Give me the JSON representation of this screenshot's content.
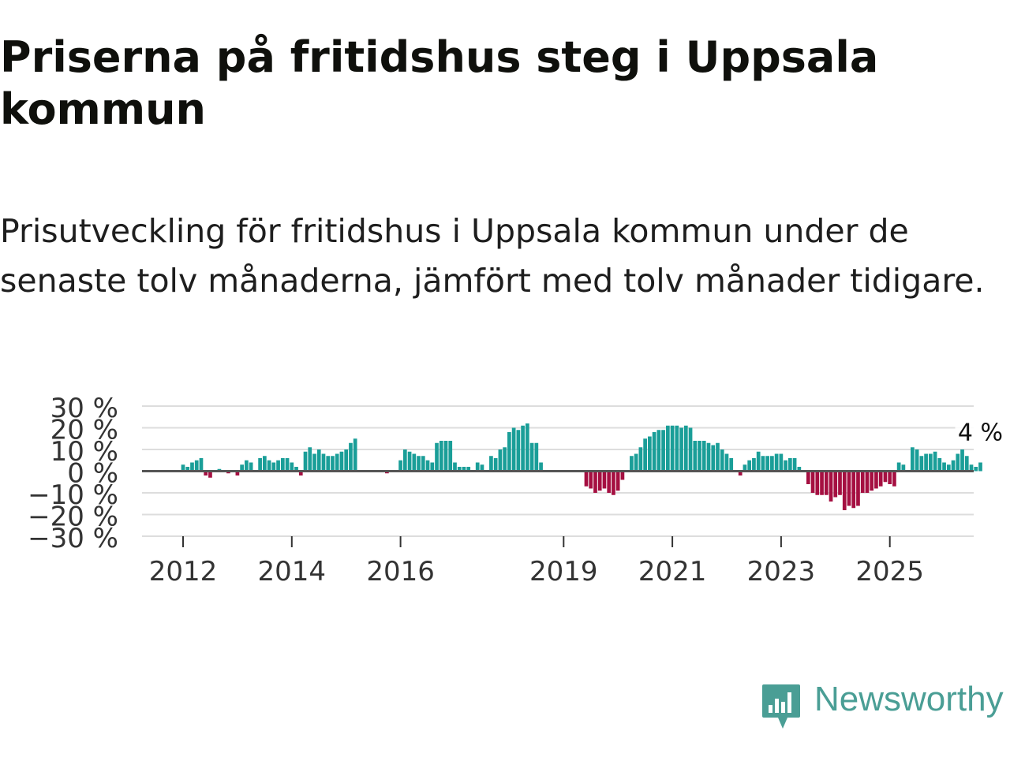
{
  "title": "Priserna på fritidshus steg i Uppsala kommun",
  "subtitle": "Prisutveckling för fritidshus i Uppsala kommun under de senaste tolv månaderna, jämfört med tolv månader tidigare.",
  "brand": "Newsworthy",
  "colors": {
    "positive": "#1a9e98",
    "negative": "#a50f41",
    "zero_line": "#555555",
    "grid": "#dddddd",
    "brand": "#4a9e95"
  },
  "chart_data": {
    "type": "bar",
    "ylim": [
      -30,
      30
    ],
    "y_ticks": [
      30,
      20,
      10,
      0,
      -10,
      -20,
      -30
    ],
    "y_tick_labels": [
      "30 %",
      "20 %",
      "10 %",
      "0 %",
      "−10 %",
      "−20 %",
      "−30 %"
    ],
    "x_ticks": [
      2012,
      2014,
      2016,
      2019,
      2021,
      2023,
      2025
    ],
    "x_tick_labels": [
      "2012",
      "2014",
      "2016",
      "2019",
      "2021",
      "2023",
      "2025"
    ],
    "start": 2011.25,
    "step": 0.08333,
    "values": [
      0,
      0,
      0,
      0,
      0,
      0,
      0,
      0,
      0,
      3,
      2,
      4,
      5,
      6,
      -2,
      -3,
      0,
      1,
      0,
      -1,
      0,
      -2,
      3,
      5,
      4,
      0,
      6,
      7,
      5,
      4,
      5,
      6,
      6,
      4,
      2,
      -2,
      9,
      11,
      8,
      10,
      8,
      7,
      7,
      8,
      9,
      10,
      13,
      15,
      0,
      0,
      0,
      0,
      0,
      0,
      -1,
      0,
      0,
      5,
      10,
      9,
      8,
      7,
      7,
      5,
      4,
      13,
      14,
      14,
      14,
      4,
      2,
      2,
      2,
      0,
      4,
      3,
      0,
      7,
      6,
      10,
      11,
      18,
      20,
      19,
      21,
      22,
      13,
      13,
      4,
      0,
      0,
      0,
      0,
      0,
      0,
      0,
      0,
      0,
      -7,
      -8,
      -10,
      -9,
      -8,
      -10,
      -11,
      -9,
      -4,
      0,
      7,
      8,
      11,
      15,
      16,
      18,
      19,
      19,
      21,
      21,
      21,
      20,
      21,
      20,
      14,
      14,
      14,
      13,
      12,
      13,
      10,
      8,
      6,
      0,
      -2,
      3,
      5,
      6,
      9,
      7,
      7,
      7,
      8,
      8,
      5,
      6,
      6,
      2,
      0,
      -6,
      -10,
      -11,
      -11,
      -11,
      -14,
      -12,
      -11,
      -18,
      -16,
      -17,
      -16,
      -10,
      -10,
      -9,
      -8,
      -7,
      -5,
      -6,
      -7,
      4,
      3,
      0,
      11,
      10,
      7,
      8,
      8,
      9,
      6,
      4,
      3,
      5,
      8,
      10,
      7,
      3,
      2,
      4
    ],
    "label": "4 %"
  }
}
